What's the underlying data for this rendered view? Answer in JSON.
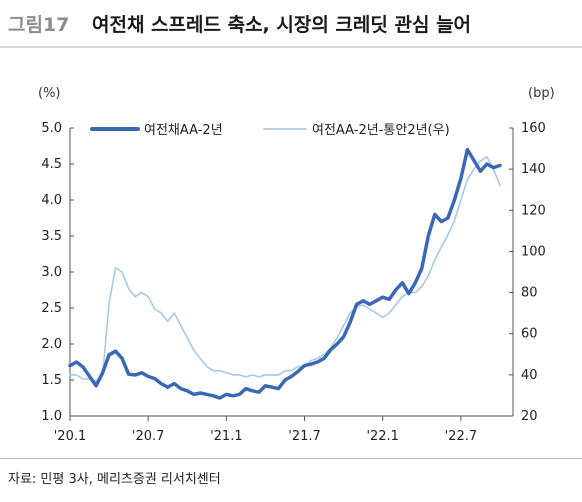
{
  "figure": {
    "label": "그림17",
    "title": "여전채 스프레드 축소, 시장의 크레딧 관심 늘어",
    "source": "자료: 민평 3사, 메리츠증권 리서치센터"
  },
  "chart_data": {
    "type": "line",
    "title": "여전채 스프레드 축소, 시장의 크레딧 관심 늘어",
    "left_axis": {
      "unit": "(%)",
      "ylim": [
        1.0,
        5.0
      ],
      "ticks": [
        "1.0",
        "1.5",
        "2.0",
        "2.5",
        "3.0",
        "3.5",
        "4.0",
        "4.5",
        "5.0"
      ]
    },
    "right_axis": {
      "unit": "(bp)",
      "ylim": [
        20,
        160
      ],
      "ticks": [
        "20",
        "40",
        "60",
        "80",
        "100",
        "120",
        "140",
        "160"
      ]
    },
    "x_ticks": [
      "'20.1",
      "'20.7",
      "'21.1",
      "'21.7",
      "'22.1",
      "'22.7"
    ],
    "x_tick_months": [
      0,
      6,
      12,
      18,
      24,
      30
    ],
    "x_range_months": [
      0,
      34
    ],
    "grid": false,
    "legend_position": "top",
    "series": [
      {
        "name": "여전채AA-2년",
        "axis": "left",
        "color": "#3a68b4",
        "x": [
          0,
          0.5,
          1,
          1.5,
          2,
          2.5,
          3,
          3.5,
          4,
          4.5,
          5,
          5.5,
          6,
          6.5,
          7,
          7.5,
          8,
          8.5,
          9,
          9.5,
          10,
          10.5,
          11,
          11.5,
          12,
          12.5,
          13,
          13.5,
          14,
          14.5,
          15,
          15.5,
          16,
          16.5,
          17,
          17.5,
          18,
          18.5,
          19,
          19.5,
          20,
          20.5,
          21,
          21.5,
          22,
          22.5,
          23,
          23.5,
          24,
          24.5,
          25,
          25.5,
          26,
          26.5,
          27,
          27.5,
          28,
          28.5,
          29,
          29.5,
          30,
          30.5,
          31,
          31.5,
          32,
          32.5,
          33
        ],
        "values": [
          1.7,
          1.75,
          1.68,
          1.55,
          1.42,
          1.6,
          1.85,
          1.9,
          1.8,
          1.58,
          1.57,
          1.6,
          1.55,
          1.52,
          1.45,
          1.4,
          1.45,
          1.38,
          1.35,
          1.3,
          1.32,
          1.3,
          1.28,
          1.25,
          1.3,
          1.28,
          1.3,
          1.38,
          1.35,
          1.33,
          1.42,
          1.4,
          1.38,
          1.5,
          1.55,
          1.62,
          1.7,
          1.72,
          1.75,
          1.8,
          1.92,
          2.0,
          2.1,
          2.3,
          2.55,
          2.6,
          2.55,
          2.6,
          2.65,
          2.62,
          2.75,
          2.85,
          2.7,
          2.85,
          3.05,
          3.5,
          3.8,
          3.7,
          3.75,
          4.0,
          4.3,
          4.7,
          4.55,
          4.4,
          4.5,
          4.45,
          4.48
        ]
      },
      {
        "name": "여전AA-2년-통안2년(우)",
        "axis": "right",
        "color": "#a6c8ea",
        "x": [
          0,
          0.5,
          1,
          1.5,
          2,
          2.5,
          3,
          3.5,
          4,
          4.5,
          5,
          5.5,
          6,
          6.5,
          7,
          7.5,
          8,
          8.5,
          9,
          9.5,
          10,
          10.5,
          11,
          11.5,
          12,
          12.5,
          13,
          13.5,
          14,
          14.5,
          15,
          15.5,
          16,
          16.5,
          17,
          17.5,
          18,
          18.5,
          19,
          19.5,
          20,
          20.5,
          21,
          21.5,
          22,
          22.5,
          23,
          23.5,
          24,
          24.5,
          25,
          25.5,
          26,
          26.5,
          27,
          27.5,
          28,
          28.5,
          29,
          29.5,
          30,
          30.5,
          31,
          31.5,
          32,
          32.5,
          33
        ],
        "values": [
          40,
          40,
          38,
          38,
          37,
          40,
          75,
          92,
          90,
          82,
          78,
          80,
          78,
          72,
          70,
          66,
          70,
          64,
          58,
          52,
          48,
          44,
          42,
          42,
          41,
          40,
          40,
          39,
          40,
          39,
          40,
          40,
          40,
          42,
          42,
          44,
          44,
          47,
          48,
          50,
          53,
          58,
          64,
          70,
          73,
          74,
          72,
          70,
          68,
          70,
          74,
          78,
          80,
          80,
          83,
          88,
          96,
          102,
          108,
          115,
          125,
          135,
          140,
          144,
          146,
          140,
          132
        ]
      }
    ]
  }
}
